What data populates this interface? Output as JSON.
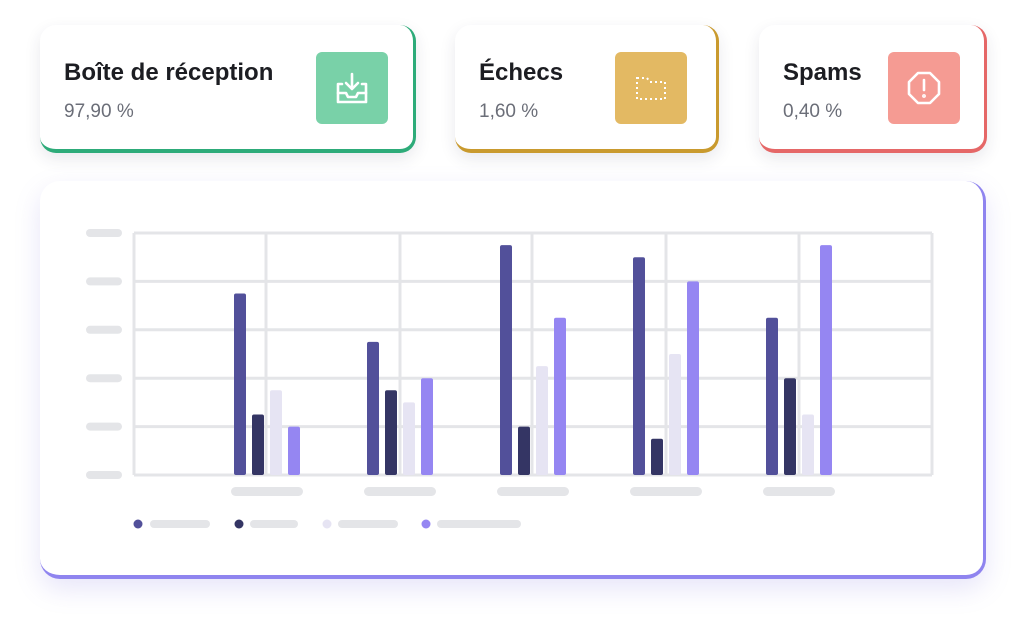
{
  "stats": [
    {
      "title": "Boîte de réception",
      "value": "97,90 %",
      "icon": "inbox-download-icon",
      "accent": "#2dab79",
      "icon_bg": "#79d1a8"
    },
    {
      "title": "Échecs",
      "value": "1,60 %",
      "icon": "dotted-folder-icon",
      "accent": "#c99a2e",
      "icon_bg": "#e3b963"
    },
    {
      "title": "Spams",
      "value": "0,40 %",
      "icon": "alert-octagon-icon",
      "accent": "#e56767",
      "icon_bg": "#f59b93"
    }
  ],
  "chart_data": {
    "type": "bar",
    "categories": [
      "",
      "",
      "",
      "",
      ""
    ],
    "series": [
      {
        "color": "#52509a",
        "values": [
          3.75,
          2.75,
          4.75,
          4.5,
          3.25
        ]
      },
      {
        "color": "#343564",
        "values": [
          1.25,
          1.75,
          1.0,
          0.75,
          2.0
        ]
      },
      {
        "color": "#e6e4f3",
        "values": [
          1.75,
          1.5,
          2.25,
          2.5,
          1.25
        ]
      },
      {
        "color": "#9586f2",
        "values": [
          1.0,
          2.0,
          3.25,
          4.0,
          4.75
        ]
      }
    ],
    "ylim": [
      0,
      5
    ],
    "grid": true,
    "legend": "bottom-left",
    "xlabel": "",
    "ylabel": ""
  }
}
